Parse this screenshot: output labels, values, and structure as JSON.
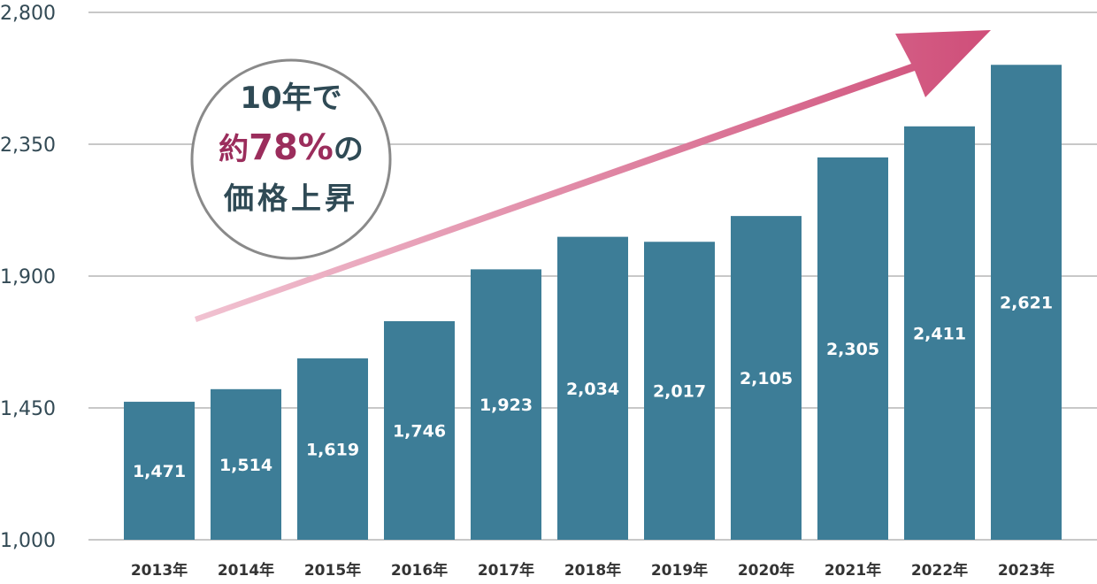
{
  "chart_data": {
    "type": "bar",
    "categories": [
      "2013年",
      "2014年",
      "2015年",
      "2016年",
      "2017年",
      "2018年",
      "2019年",
      "2020年",
      "2021年",
      "2022年",
      "2023年"
    ],
    "values": [
      1471,
      1514,
      1619,
      1746,
      1923,
      2034,
      2017,
      2105,
      2305,
      2411,
      2621
    ],
    "value_labels": [
      "1,471",
      "1,514",
      "1,619",
      "1,746",
      "1,923",
      "2,034",
      "2,017",
      "2,105",
      "2,305",
      "2,411",
      "2,621"
    ],
    "ylim": [
      1000,
      2800
    ],
    "yticks": [
      1000,
      1450,
      1900,
      2350,
      2800
    ],
    "ytick_labels": [
      "1,000",
      "1,450",
      "1,900",
      "2,350",
      "2,800"
    ],
    "grid": true,
    "bar_color": "#3d7d97",
    "arrow_color_start": "#f1c2d1",
    "arrow_color_end": "#cf4e79"
  },
  "callout": {
    "line1": "10年で",
    "line2_prefix": "約",
    "line2_highlight": "78%",
    "line2_suffix": "の",
    "line3": "価格上昇",
    "text_color": "#2f4a55",
    "highlight_color": "#9b2d5c",
    "border_color": "#8a8a8a"
  }
}
